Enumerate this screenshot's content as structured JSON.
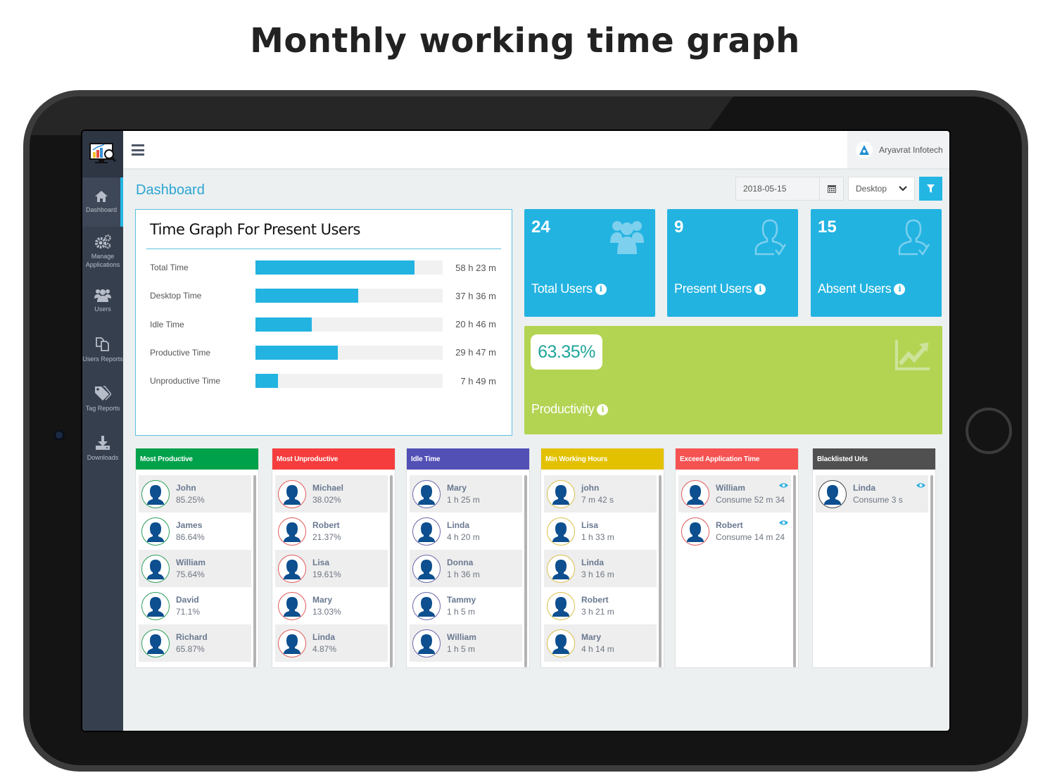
{
  "headline": "Monthly working time graph",
  "app": {
    "sidebar": {
      "items": [
        {
          "label": "Dashboard",
          "icon": "home-icon",
          "active": true
        },
        {
          "label": "Manage Applications",
          "icon": "gears-icon"
        },
        {
          "label": "Users",
          "icon": "users-icon"
        },
        {
          "label": "Users Reports",
          "icon": "copy-icon"
        },
        {
          "label": "Tag Reports",
          "icon": "tags-icon"
        },
        {
          "label": "Downloads",
          "icon": "download-icon"
        }
      ]
    },
    "topbar": {
      "menu_icon": "hamburger-icon",
      "company": "Aryavrat Infotech"
    },
    "page": {
      "title": "Dashboard",
      "date_value": "2018-05-15",
      "device_select": "Desktop",
      "filter_icon": "filter-icon"
    },
    "time_graph": {
      "title": "Time Graph For Present Users",
      "rows": [
        {
          "label": "Total Time",
          "value": "58 h 23 m",
          "pct": 85
        },
        {
          "label": "Desktop Time",
          "value": "37 h 36 m",
          "pct": 55
        },
        {
          "label": "Idle Time",
          "value": "20 h 46 m",
          "pct": 30
        },
        {
          "label": "Productive Time",
          "value": "29 h 47 m",
          "pct": 44
        },
        {
          "label": "Unproductive Time",
          "value": "7 h 49 m",
          "pct": 12
        }
      ]
    },
    "stats": [
      {
        "value": "24",
        "label": "Total Users",
        "icon": "users-group-icon"
      },
      {
        "value": "9",
        "label": "Present Users",
        "icon": "user-check-icon"
      },
      {
        "value": "15",
        "label": "Absent Users",
        "icon": "user-check-icon"
      }
    ],
    "productivity": {
      "value": "63.35%",
      "label": "Productivity",
      "icon": "line-chart-icon"
    },
    "lists": [
      {
        "title": "Most Productive",
        "color": "#00a14b",
        "ring": "#2e9e5b",
        "items": [
          {
            "name": "John",
            "value": "85.25%"
          },
          {
            "name": "James",
            "value": "86.64%"
          },
          {
            "name": "William",
            "value": "75.64%"
          },
          {
            "name": "David",
            "value": "71.1%"
          },
          {
            "name": "Richard",
            "value": "65.87%"
          }
        ]
      },
      {
        "title": "Most Unproductive",
        "color": "#f53d3d",
        "ring": "#e05a5a",
        "items": [
          {
            "name": "Michael",
            "value": "38.02%"
          },
          {
            "name": "Robert",
            "value": "21.37%"
          },
          {
            "name": "Lisa",
            "value": "19.61%"
          },
          {
            "name": "Mary",
            "value": "13.03%"
          },
          {
            "name": "Linda",
            "value": "4.87%"
          }
        ]
      },
      {
        "title": "Idle Time",
        "color": "#524fb5",
        "ring": "#6a67a8",
        "items": [
          {
            "name": "Mary",
            "value": "1 h 25 m"
          },
          {
            "name": "Linda",
            "value": "4 h 20 m"
          },
          {
            "name": "Donna",
            "value": "1 h 36 m"
          },
          {
            "name": "Tammy",
            "value": "1 h 5 m"
          },
          {
            "name": "William",
            "value": "1 h 5 m"
          }
        ]
      },
      {
        "title": "Min Working Hours",
        "color": "#e3c100",
        "ring": "#d9bf4a",
        "items": [
          {
            "name": "john",
            "value": "7 m 42 s"
          },
          {
            "name": "Lisa",
            "value": "1 h 33 m"
          },
          {
            "name": "Linda",
            "value": "3 h 16 m"
          },
          {
            "name": "Robert",
            "value": "3 h 21 m"
          },
          {
            "name": "Mary",
            "value": "4 h 14 m"
          }
        ]
      },
      {
        "title": "Exceed Application Time",
        "color": "#f55252",
        "ring": "#e05a5a",
        "eye": true,
        "items": [
          {
            "name": "William",
            "value": "Consume 52 m 34"
          },
          {
            "name": "Robert",
            "value": "Consume 14 m 24"
          }
        ]
      },
      {
        "title": "Blacklisted Urls",
        "color": "#505050",
        "ring": "#444444",
        "eye": true,
        "items": [
          {
            "name": "Linda",
            "value": "Consume 3 s"
          }
        ]
      }
    ]
  }
}
